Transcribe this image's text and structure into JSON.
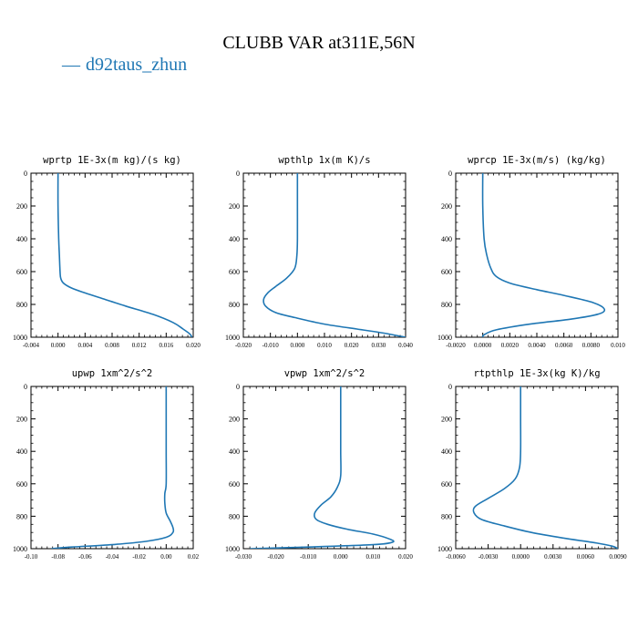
{
  "title": "CLUBB VAR at311E,56N",
  "legend": {
    "marker": "—",
    "label": "d92taus_zhun",
    "color": "#1f77b4"
  },
  "chart_data": [
    {
      "type": "line",
      "title": "wprtp  1E-3x(m kg)/(s kg)",
      "xlim": [
        -0.004,
        0.02
      ],
      "xticks": [
        "-0.004",
        "0.000",
        "0.004",
        "0.008",
        "0.012",
        "0.016",
        "0.020"
      ],
      "ylim": [
        0,
        1000
      ],
      "y_inverted": true,
      "yticks": [
        "0",
        "200",
        "400",
        "600",
        "800",
        "1000"
      ],
      "series": [
        {
          "color": "#1f77b4",
          "points": [
            [
              0.0,
              0
            ],
            [
              0.0,
              200
            ],
            [
              0.0001,
              400
            ],
            [
              0.0002,
              500
            ],
            [
              0.0003,
              600
            ],
            [
              0.0004,
              640
            ],
            [
              0.0008,
              670
            ],
            [
              0.002,
              700
            ],
            [
              0.004,
              730
            ],
            [
              0.007,
              770
            ],
            [
              0.01,
              810
            ],
            [
              0.014,
              860
            ],
            [
              0.017,
              910
            ],
            [
              0.0185,
              950
            ],
            [
              0.0195,
              980
            ],
            [
              0.0198,
              1000
            ]
          ]
        }
      ]
    },
    {
      "type": "line",
      "title": "wpthlp  1x(m K)/s",
      "xlim": [
        -0.02,
        0.04
      ],
      "xticks": [
        "-0.020",
        "-0.010",
        "0.000",
        "0.010",
        "0.020",
        "0.030",
        "0.040"
      ],
      "ylim": [
        0,
        1000
      ],
      "y_inverted": true,
      "yticks": [
        "0",
        "200",
        "400",
        "600",
        "800",
        "1000"
      ],
      "series": [
        {
          "color": "#1f77b4",
          "points": [
            [
              0.0,
              0
            ],
            [
              0.0,
              200
            ],
            [
              0.0,
              400
            ],
            [
              -0.0002,
              500
            ],
            [
              -0.001,
              580
            ],
            [
              -0.004,
              640
            ],
            [
              -0.008,
              690
            ],
            [
              -0.011,
              730
            ],
            [
              -0.0125,
              770
            ],
            [
              -0.0118,
              810
            ],
            [
              -0.008,
              850
            ],
            [
              -0.001,
              880
            ],
            [
              0.01,
              920
            ],
            [
              0.022,
              950
            ],
            [
              0.032,
              975
            ],
            [
              0.04,
              1000
            ]
          ]
        }
      ]
    },
    {
      "type": "line",
      "title": "wprcp  1E-3x(m/s) (kg/kg)",
      "xlim": [
        -0.002,
        0.01
      ],
      "xticks": [
        "-0.0020",
        "0.0000",
        "0.0020",
        "0.0040",
        "0.0060",
        "0.0080",
        "0.010"
      ],
      "ylim": [
        0,
        1000
      ],
      "y_inverted": true,
      "yticks": [
        "0",
        "200",
        "400",
        "600",
        "800",
        "1000"
      ],
      "series": [
        {
          "color": "#1f77b4",
          "points": [
            [
              0.0,
              0
            ],
            [
              0.0,
              200
            ],
            [
              0.0001,
              400
            ],
            [
              0.0003,
              500
            ],
            [
              0.0006,
              580
            ],
            [
              0.001,
              630
            ],
            [
              0.002,
              670
            ],
            [
              0.004,
              710
            ],
            [
              0.006,
              745
            ],
            [
              0.0082,
              790
            ],
            [
              0.009,
              830
            ],
            [
              0.0085,
              860
            ],
            [
              0.0065,
              890
            ],
            [
              0.0035,
              920
            ],
            [
              0.001,
              955
            ],
            [
              0.0001,
              985
            ],
            [
              0.0,
              1000
            ]
          ]
        }
      ]
    },
    {
      "type": "line",
      "title": "upwp  1xm^2/s^2",
      "xlim": [
        -0.1,
        0.02
      ],
      "xticks": [
        "-0.10",
        "-0.08",
        "-0.06",
        "-0.04",
        "-0.02",
        "0.00",
        "0.02"
      ],
      "ylim": [
        0,
        1000
      ],
      "y_inverted": true,
      "yticks": [
        "0",
        "200",
        "400",
        "600",
        "800",
        "1000"
      ],
      "series": [
        {
          "color": "#1f77b4",
          "points": [
            [
              0.0,
              0
            ],
            [
              0.0,
              200
            ],
            [
              0.0,
              400
            ],
            [
              0.0,
              600
            ],
            [
              -0.001,
              660
            ],
            [
              -0.001,
              720
            ],
            [
              0.0,
              780
            ],
            [
              0.003,
              830
            ],
            [
              0.005,
              870
            ],
            [
              0.005,
              900
            ],
            [
              0.0,
              930
            ],
            [
              -0.015,
              955
            ],
            [
              -0.04,
              975
            ],
            [
              -0.07,
              990
            ],
            [
              -0.085,
              1000
            ]
          ]
        }
      ]
    },
    {
      "type": "line",
      "title": "vpwp  1xm^2/s^2",
      "xlim": [
        -0.03,
        0.02
      ],
      "xticks": [
        "-0.030",
        "-0.020",
        "-0.010",
        "0.000",
        "0.010",
        "0.020"
      ],
      "ylim": [
        0,
        1000
      ],
      "y_inverted": true,
      "yticks": [
        "0",
        "200",
        "400",
        "600",
        "800",
        "1000"
      ],
      "series": [
        {
          "color": "#1f77b4",
          "points": [
            [
              0.0,
              0
            ],
            [
              0.0,
              200
            ],
            [
              0.0,
              400
            ],
            [
              0.0,
              550
            ],
            [
              -0.001,
              620
            ],
            [
              -0.003,
              680
            ],
            [
              -0.006,
              730
            ],
            [
              -0.008,
              780
            ],
            [
              -0.0075,
              820
            ],
            [
              -0.004,
              850
            ],
            [
              0.002,
              880
            ],
            [
              0.01,
              910
            ],
            [
              0.015,
              940
            ],
            [
              0.016,
              960
            ],
            [
              0.01,
              975
            ],
            [
              -0.01,
              990
            ],
            [
              -0.028,
              1000
            ]
          ]
        }
      ]
    },
    {
      "type": "line",
      "title": "rtpthlp  1E-3x(kg K)/kg",
      "xlim": [
        -0.006,
        0.009
      ],
      "xticks": [
        "-0.0060",
        "-0.0030",
        "0.0000",
        "0.0030",
        "0.0060",
        "0.0090"
      ],
      "ylim": [
        0,
        1000
      ],
      "y_inverted": true,
      "yticks": [
        "0",
        "200",
        "400",
        "600",
        "800",
        "1000"
      ],
      "series": [
        {
          "color": "#1f77b4",
          "points": [
            [
              0.0,
              0
            ],
            [
              0.0,
              200
            ],
            [
              0.0,
              400
            ],
            [
              -0.0001,
              500
            ],
            [
              -0.0005,
              570
            ],
            [
              -0.0015,
              630
            ],
            [
              -0.003,
              690
            ],
            [
              -0.0042,
              740
            ],
            [
              -0.0043,
              780
            ],
            [
              -0.0036,
              820
            ],
            [
              -0.0015,
              860
            ],
            [
              0.001,
              900
            ],
            [
              0.004,
              935
            ],
            [
              0.007,
              965
            ],
            [
              0.0085,
              985
            ],
            [
              0.009,
              1000
            ]
          ]
        }
      ]
    }
  ]
}
